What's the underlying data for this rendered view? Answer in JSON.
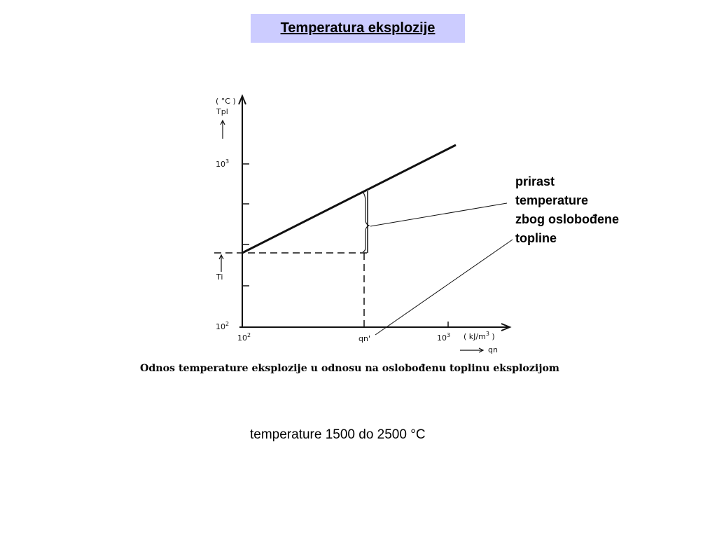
{
  "title": "Temperatura eksplozije",
  "diagram": {
    "y_unit": "( °C )",
    "y_label": "Tpl",
    "y_tick_high_base": "10",
    "y_tick_high_exp": "3",
    "y_tick_low_base": "10",
    "y_tick_low_exp": "2",
    "ti_label": "Ti",
    "x_tick_low_base": "10",
    "x_tick_low_exp": "2",
    "x_tick_high_base": "10",
    "x_tick_high_exp": "3",
    "qn_prime_label": "qn'",
    "x_unit": "( kJ/m",
    "x_unit_exp": "3",
    "x_unit_close": " )",
    "x_label": "qn"
  },
  "annotation": {
    "lines": [
      "prirast",
      "temperature",
      "zbog oslobođene",
      "topline"
    ]
  },
  "caption": "Odnos temperature eksplozije u odnosu na oslobođenu toplinu eksplozijom",
  "bottom_text": "temperature 1500 do 2500 °C"
}
